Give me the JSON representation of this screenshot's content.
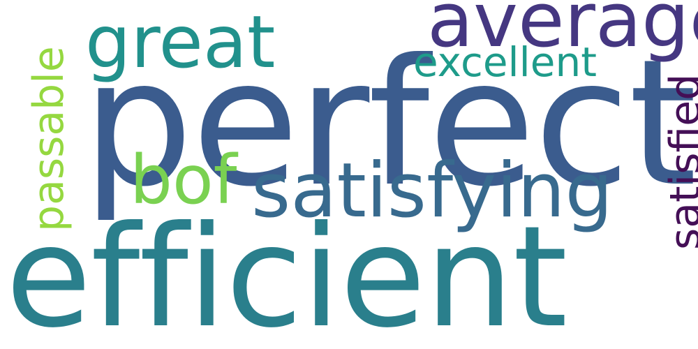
{
  "word_cloud": {
    "words": [
      {
        "id": "perfect",
        "text": "perfect",
        "color": "#3b5c8e"
      },
      {
        "id": "efficient",
        "text": "efficient",
        "color": "#2a7f8c"
      },
      {
        "id": "satisfying",
        "text": "satisfying",
        "color": "#386a8e"
      },
      {
        "id": "average",
        "text": "average",
        "color": "#453781"
      },
      {
        "id": "great",
        "text": "great",
        "color": "#21918c"
      },
      {
        "id": "excellent",
        "text": "excellent",
        "color": "#1e9b8a"
      },
      {
        "id": "bof",
        "text": "bof",
        "color": "#7ad151"
      },
      {
        "id": "satisfied",
        "text": "satisfied",
        "color": "#440f56"
      },
      {
        "id": "passable",
        "text": "passable",
        "color": "#95d840"
      }
    ]
  }
}
